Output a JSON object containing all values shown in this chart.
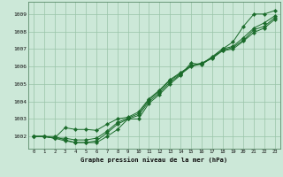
{
  "background_color": "#cce8d8",
  "grid_color": "#99c4a8",
  "line_color": "#1a6b2a",
  "title": "Graphe pression niveau de la mer (hPa)",
  "xlim": [
    -0.5,
    23.5
  ],
  "ylim": [
    1001.3,
    1009.7
  ],
  "yticks": [
    1002,
    1003,
    1004,
    1005,
    1006,
    1007,
    1008,
    1009
  ],
  "xticks": [
    0,
    1,
    2,
    3,
    4,
    5,
    6,
    7,
    8,
    9,
    10,
    11,
    12,
    13,
    14,
    15,
    16,
    17,
    18,
    19,
    20,
    21,
    22,
    23
  ],
  "series": [
    [
      1002.0,
      1002.0,
      1002.0,
      1001.8,
      1001.65,
      1001.65,
      1001.65,
      1002.0,
      1002.4,
      1003.0,
      1003.0,
      1003.9,
      1004.4,
      1005.0,
      1005.5,
      1006.2,
      1006.1,
      1006.5,
      1007.0,
      1007.4,
      1008.3,
      1009.0,
      1009.0,
      1009.2
    ],
    [
      1002.0,
      1002.0,
      1001.9,
      1001.75,
      1001.65,
      1001.65,
      1001.75,
      1002.2,
      1002.7,
      1003.0,
      1003.2,
      1004.0,
      1004.5,
      1005.1,
      1005.55,
      1006.0,
      1006.15,
      1006.55,
      1007.0,
      1007.15,
      1007.65,
      1008.2,
      1008.5,
      1008.9
    ],
    [
      1002.0,
      1002.0,
      1001.9,
      1001.9,
      1001.8,
      1001.8,
      1001.9,
      1002.3,
      1002.8,
      1003.05,
      1003.3,
      1004.1,
      1004.6,
      1005.2,
      1005.6,
      1006.05,
      1006.15,
      1006.5,
      1006.9,
      1007.1,
      1007.5,
      1008.1,
      1008.3,
      1008.8
    ],
    [
      1002.0,
      1002.0,
      1001.9,
      1002.5,
      1002.4,
      1002.4,
      1002.35,
      1002.7,
      1003.0,
      1003.1,
      1003.4,
      1004.15,
      1004.65,
      1005.25,
      1005.65,
      1006.05,
      1006.2,
      1006.45,
      1006.9,
      1007.0,
      1007.45,
      1007.95,
      1008.2,
      1008.7
    ]
  ]
}
